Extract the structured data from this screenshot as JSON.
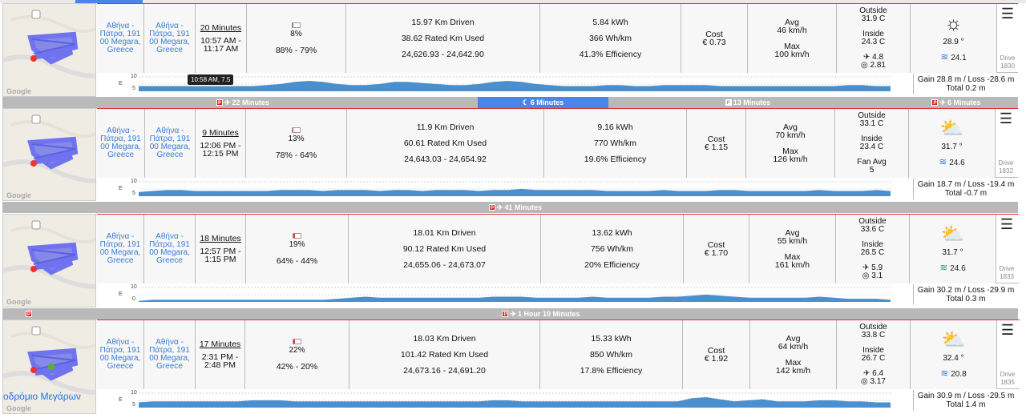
{
  "drives": [
    {
      "from": "Αθήνα - Πάτρα, 191 00 Megara, Greece",
      "to": "Αθήνα - Πάτρα, 191 00 Megara, Greece",
      "duration": "20 Minutes",
      "time_start": "10:57 AM -",
      "time_end": "11:17 AM",
      "battery_used_pct": "8%",
      "battery_fill": 0.08,
      "battery_range": "88% - 79%",
      "km_driven": "15.97 Km Driven",
      "rated_km": "38.62 Rated Km Used",
      "odometer": "24,626.93 - 24,642.90",
      "kwh": "5.84 kWh",
      "wh_km": "366 Wh/km",
      "efficiency": "41.3% Efficiency",
      "cost_label": "Cost",
      "cost": "€ 0.73",
      "avg_label": "Avg",
      "avg_speed": "46 km/h",
      "max_label": "Max",
      "max_speed": "100 km/h",
      "outside_label": "Outside",
      "outside_temp": "31.9 C",
      "inside_label": "Inside",
      "inside_temp": "24.3 C",
      "extra1": "✈ 4.8",
      "extra2": "◎ 2.81",
      "weather_icon": "☼",
      "weather_temp": "28.9 °",
      "wind": "24.1",
      "drive_label": "Drive",
      "drive_no": "1830",
      "elev_top": "10",
      "elev_mid": "5",
      "elev_e": "E",
      "gain_loss": "Gain 28.8 m / Loss -28.6 m",
      "total": "Total 0.2 m",
      "place": ""
    },
    {
      "from": "Αθήνα - Πάτρα, 191 00 Megara, Greece",
      "to": "Αθήνα - Πάτρα, 191 00 Megara, Greece",
      "duration": "9 Minutes",
      "time_start": "12:06 PM -",
      "time_end": "12:15 PM",
      "battery_used_pct": "13%",
      "battery_fill": 0.13,
      "battery_range": "78% - 64%",
      "km_driven": "11.9 Km Driven",
      "rated_km": "60.61 Rated Km Used",
      "odometer": "24,643.03 - 24,654.92",
      "kwh": "9.16 kWh",
      "wh_km": "770 Wh/km",
      "efficiency": "19.6% Efficiency",
      "cost_label": "Cost",
      "cost": "€ 1.15",
      "avg_label": "Avg",
      "avg_speed": "70 km/h",
      "max_label": "Max",
      "max_speed": "126 km/h",
      "outside_label": "Outside",
      "outside_temp": "33.1 C",
      "inside_label": "Inside",
      "inside_temp": "23.4 C",
      "extra1": "Fan Avg",
      "extra2": "5",
      "weather_icon": "⛅",
      "weather_temp": "31.7 °",
      "wind": "24.6",
      "drive_label": "Drive",
      "drive_no": "1832",
      "elev_top": "10",
      "elev_mid": "5",
      "elev_e": "E",
      "gain_loss": "Gain 18.7 m / Loss -19.4 m",
      "total": "Total -0.7 m",
      "place": ""
    },
    {
      "from": "Αθήνα - Πάτρα, 191 00 Megara, Greece",
      "to": "Αθήνα - Πάτρα, 191 00 Megara, Greece",
      "duration": "18 Minutes",
      "time_start": "12:57 PM -",
      "time_end": "1:15 PM",
      "battery_used_pct": "19%",
      "battery_fill": 0.19,
      "battery_range": "64% - 44%",
      "km_driven": "18.01 Km Driven",
      "rated_km": "90.12 Rated Km Used",
      "odometer": "24,655.06 - 24,673.07",
      "kwh": "13.62 kWh",
      "wh_km": "756 Wh/km",
      "efficiency": "20% Efficiency",
      "cost_label": "Cost",
      "cost": "€ 1.70",
      "avg_label": "Avg",
      "avg_speed": "55 km/h",
      "max_label": "Max",
      "max_speed": "161 km/h",
      "outside_label": "Outside",
      "outside_temp": "33.6 C",
      "inside_label": "Inside",
      "inside_temp": "26.5 C",
      "extra1": "✈ 5.9",
      "extra2": "◎ 3.1",
      "weather_icon": "⛅",
      "weather_temp": "31.7 °",
      "wind": "24.6",
      "drive_label": "Drive",
      "drive_no": "1833",
      "elev_top": "10",
      "elev_mid": "0",
      "elev_e": "E",
      "gain_loss": "Gain 30.2 m / Loss -29.9 m",
      "total": "Total 0.3 m",
      "place": ""
    },
    {
      "from": "Αθήνα - Πάτρα, 191 00 Megara, Greece",
      "to": "Αθήνα - Πάτρα, 191 00 Megara, Greece",
      "duration": "17 Minutes",
      "time_start": "2:31 PM -",
      "time_end": "2:48 PM",
      "battery_used_pct": "22%",
      "battery_fill": 0.22,
      "battery_range": "42% - 20%",
      "km_driven": "18.03 Km Driven",
      "rated_km": "101.42 Rated Km Used",
      "odometer": "24,673.16 - 24,691.20",
      "kwh": "15.33 kWh",
      "wh_km": "850 Wh/km",
      "efficiency": "17.8% Efficiency",
      "cost_label": "Cost",
      "cost": "€ 1.92",
      "avg_label": "Avg",
      "avg_speed": "64 km/h",
      "max_label": "Max",
      "max_speed": "142 km/h",
      "outside_label": "Outside",
      "outside_temp": "33.8 C",
      "inside_label": "Inside",
      "inside_temp": "26.7 C",
      "extra1": "✈ 6.4",
      "extra2": "◎ 3.17",
      "weather_icon": "⛅",
      "weather_temp": "32.4 °",
      "wind": "20.8",
      "drive_label": "Drive",
      "drive_no": "1835",
      "elev_top": "10",
      "elev_mid": "5",
      "elev_e": "E",
      "gain_loss": "Gain 30.9 m / Loss -29.5 m",
      "total": "Total 1.4 m",
      "place": "οδρόμιο Μεγάρων"
    }
  ],
  "map_label": "Google",
  "tooltip": "10:58 AM, 7.5",
  "gap1": {
    "p1": "22 Minutes",
    "sleep": "6 Minutes",
    "p2": "13 Minutes",
    "p3": "6 Minutes"
  },
  "gap2": {
    "p1": "41 Minutes"
  },
  "gap3": {
    "p1": "1 Hour 10 Minutes"
  },
  "colors": {
    "accent": "#4a86e8",
    "border_red": "#dd3333",
    "gap_gray": "#b9b9b9"
  }
}
